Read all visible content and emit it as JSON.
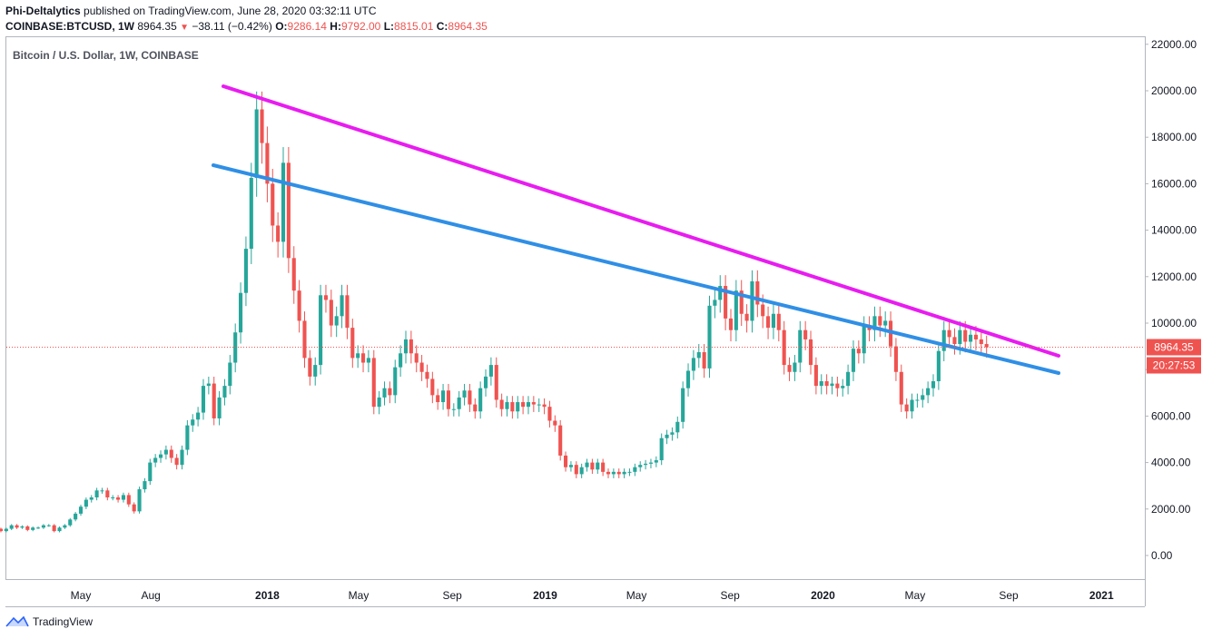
{
  "header": {
    "author": "Phi-Deltalytics",
    "published": "published on TradingView.com, June 28, 2020 03:32:11 UTC",
    "symbol": "COINBASE:BTCUSD, 1W",
    "last": "8964.35",
    "change": "−38.11 (−0.42%)",
    "o_label": "O:",
    "o_value": "9286.14",
    "h_label": "H:",
    "h_value": "9792.00",
    "l_label": "L:",
    "l_value": "8815.01",
    "c_label": "C:",
    "c_value": "8964.35"
  },
  "footer": {
    "brand": "TradingView"
  },
  "colors": {
    "up": "#26a69a",
    "down": "#ef5350",
    "magenta_line": "#e81cf0",
    "blue_line": "#2f8fe6",
    "price_tag": "#ef5350"
  },
  "chart_data": {
    "type": "candlestick",
    "title": "Bitcoin / U.S. Dollar, 1W, COINBASE",
    "ylim": [
      -1000,
      22500
    ],
    "y_ticks": [
      "22000.00",
      "20000.00",
      "18000.00",
      "16000.00",
      "14000.00",
      "12000.00",
      "10000.00",
      "8000.00",
      "6000.00",
      "4000.00",
      "2000.00",
      "0.00"
    ],
    "y_tick_values": [
      22000,
      20000,
      18000,
      16000,
      14000,
      12000,
      10000,
      8000,
      6000,
      4000,
      2000,
      0
    ],
    "xlim": [
      "2017-01-01",
      "2021-06-01"
    ],
    "x_ticks": [
      {
        "label": "May",
        "date": "2017-05-01",
        "major": false
      },
      {
        "label": "Aug",
        "date": "2017-08-01",
        "major": false
      },
      {
        "label": "2018",
        "date": "2018-01-01",
        "major": true
      },
      {
        "label": "May",
        "date": "2018-05-01",
        "major": false
      },
      {
        "label": "Sep",
        "date": "2018-09-01",
        "major": false
      },
      {
        "label": "2019",
        "date": "2019-01-01",
        "major": true
      },
      {
        "label": "May",
        "date": "2019-05-01",
        "major": false
      },
      {
        "label": "Sep",
        "date": "2019-09-01",
        "major": false
      },
      {
        "label": "2020",
        "date": "2020-01-01",
        "major": true
      },
      {
        "label": "May",
        "date": "2020-05-01",
        "major": false
      },
      {
        "label": "Sep",
        "date": "2020-09-01",
        "major": false
      },
      {
        "label": "2021",
        "date": "2021-01-01",
        "major": true
      }
    ],
    "last_price": 8964.35,
    "last_price_label": "8964.35",
    "countdown_label": "20:27:53",
    "weekly_closes": [
      1000,
      1150,
      1050,
      1150,
      1300,
      1200,
      1250,
      1100,
      1200,
      1200,
      1300,
      1300,
      1050,
      1200,
      1300,
      1550,
      1800,
      2100,
      2400,
      2500,
      2800,
      2800,
      2500,
      2500,
      2400,
      2600,
      2200,
      1900,
      2850,
      3200,
      4000,
      4200,
      4350,
      4550,
      4200,
      3900,
      4550,
      5600,
      5850,
      6150,
      7300,
      7400,
      5900,
      6800,
      7300,
      8300,
      9600,
      11300,
      13200,
      16250,
      19200,
      17750,
      16000,
      14200,
      13500,
      16900,
      12800,
      11400,
      10100,
      8500,
      7700,
      8200,
      11200,
      11000,
      9900,
      10300,
      11200,
      9800,
      8500,
      8700,
      8300,
      8500,
      6400,
      6800,
      7200,
      6900,
      8100,
      8700,
      9300,
      8700,
      8300,
      7900,
      7600,
      6900,
      6600,
      7100,
      6300,
      6300,
      6800,
      7100,
      6500,
      6200,
      7200,
      7700,
      8200,
      6700,
      6300,
      6600,
      6200,
      6600,
      6400,
      6600,
      6500,
      6500,
      6400,
      5800,
      5600,
      4300,
      3800,
      3900,
      3500,
      3800,
      4000,
      3700,
      4000,
      3600,
      3500,
      3600,
      3500,
      3600,
      3600,
      3800,
      3900,
      3950,
      4000,
      4100,
      5050,
      5200,
      5300,
      5750,
      7200,
      7950,
      8500,
      8750,
      8050,
      10750,
      11000,
      11600,
      10200,
      9700,
      11400,
      10400,
      10100,
      11800,
      10800,
      10300,
      9800,
      10400,
      9700,
      8200,
      7900,
      8300,
      9700,
      9300,
      8200,
      7300,
      7500,
      7300,
      7400,
      7200,
      7300,
      7900,
      8900,
      8700,
      9900,
      9700,
      10300,
      9900,
      10100,
      9000,
      7900,
      6500,
      6200,
      6700,
      6700,
      6900,
      7200,
      7500,
      8800,
      9700,
      9400,
      9100,
      9700,
      9200,
      9500,
      9300,
      9100,
      8964
    ]
  }
}
